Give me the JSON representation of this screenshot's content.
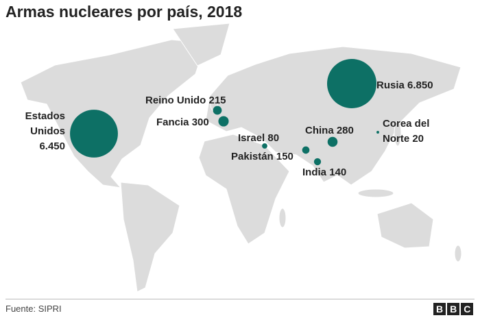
{
  "chart_data": {
    "type": "bubble-map",
    "title": "Armas nucleares por país, 2018",
    "source": "Fuente: SIPRI",
    "logo": "BBC",
    "color": "#0d7065",
    "categories": [
      "Estados Unidos",
      "Rusia",
      "Reino Unido",
      "Fancia",
      "Israel",
      "Pakistán",
      "India",
      "China",
      "Corea del Norte"
    ],
    "values": [
      6450,
      6850,
      215,
      300,
      80,
      150,
      140,
      280,
      20
    ],
    "value_labels": [
      "6.450",
      "6.850",
      "215",
      "300",
      "80",
      "150",
      "140",
      "280",
      "20"
    ]
  }
}
